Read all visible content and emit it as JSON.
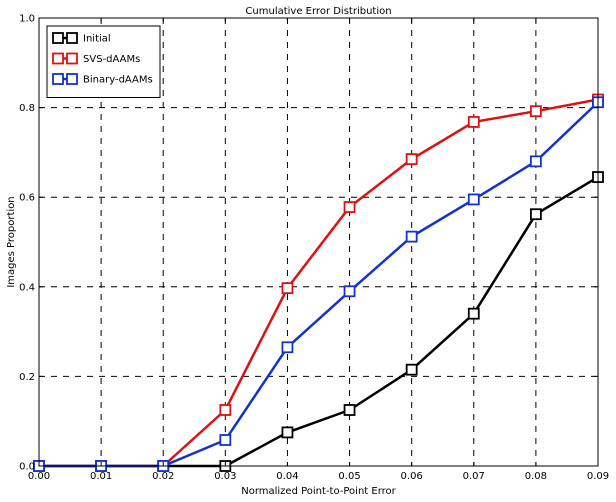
{
  "chart_data": {
    "type": "line",
    "title": "Cumulative Error Distribution",
    "xlabel": "Normalized Point-to-Point Error",
    "ylabel": "Images Proportion",
    "xlim": [
      0.0,
      0.09
    ],
    "ylim": [
      0.0,
      1.0
    ],
    "x_ticks": [
      "0.00",
      "0.01",
      "0.02",
      "0.03",
      "0.04",
      "0.05",
      "0.06",
      "0.07",
      "0.08",
      "0.09"
    ],
    "y_ticks": [
      "0.0",
      "0.2",
      "0.4",
      "0.6",
      "0.8",
      "1.0"
    ],
    "grid": true,
    "legend_position": "top-left",
    "x": [
      0.0,
      0.01,
      0.02,
      0.03,
      0.04,
      0.05,
      0.06,
      0.07,
      0.08,
      0.09
    ],
    "series": [
      {
        "name": "Initial",
        "color": "#000000",
        "marker": "square",
        "values": [
          0.0,
          0.0,
          0.0,
          0.0,
          0.075,
          0.125,
          0.215,
          0.34,
          0.562,
          0.645
        ]
      },
      {
        "name": "SVS-dAAMs",
        "color": "#dd1111",
        "marker": "square",
        "values": [
          0.0,
          0.0,
          0.0,
          0.125,
          0.397,
          0.578,
          0.685,
          0.768,
          0.792,
          0.818
        ]
      },
      {
        "name": "Binary-dAAMs",
        "color": "#1133cc",
        "marker": "square",
        "values": [
          0.0,
          0.0,
          0.0,
          0.058,
          0.265,
          0.39,
          0.512,
          0.595,
          0.68,
          0.812
        ]
      }
    ]
  }
}
